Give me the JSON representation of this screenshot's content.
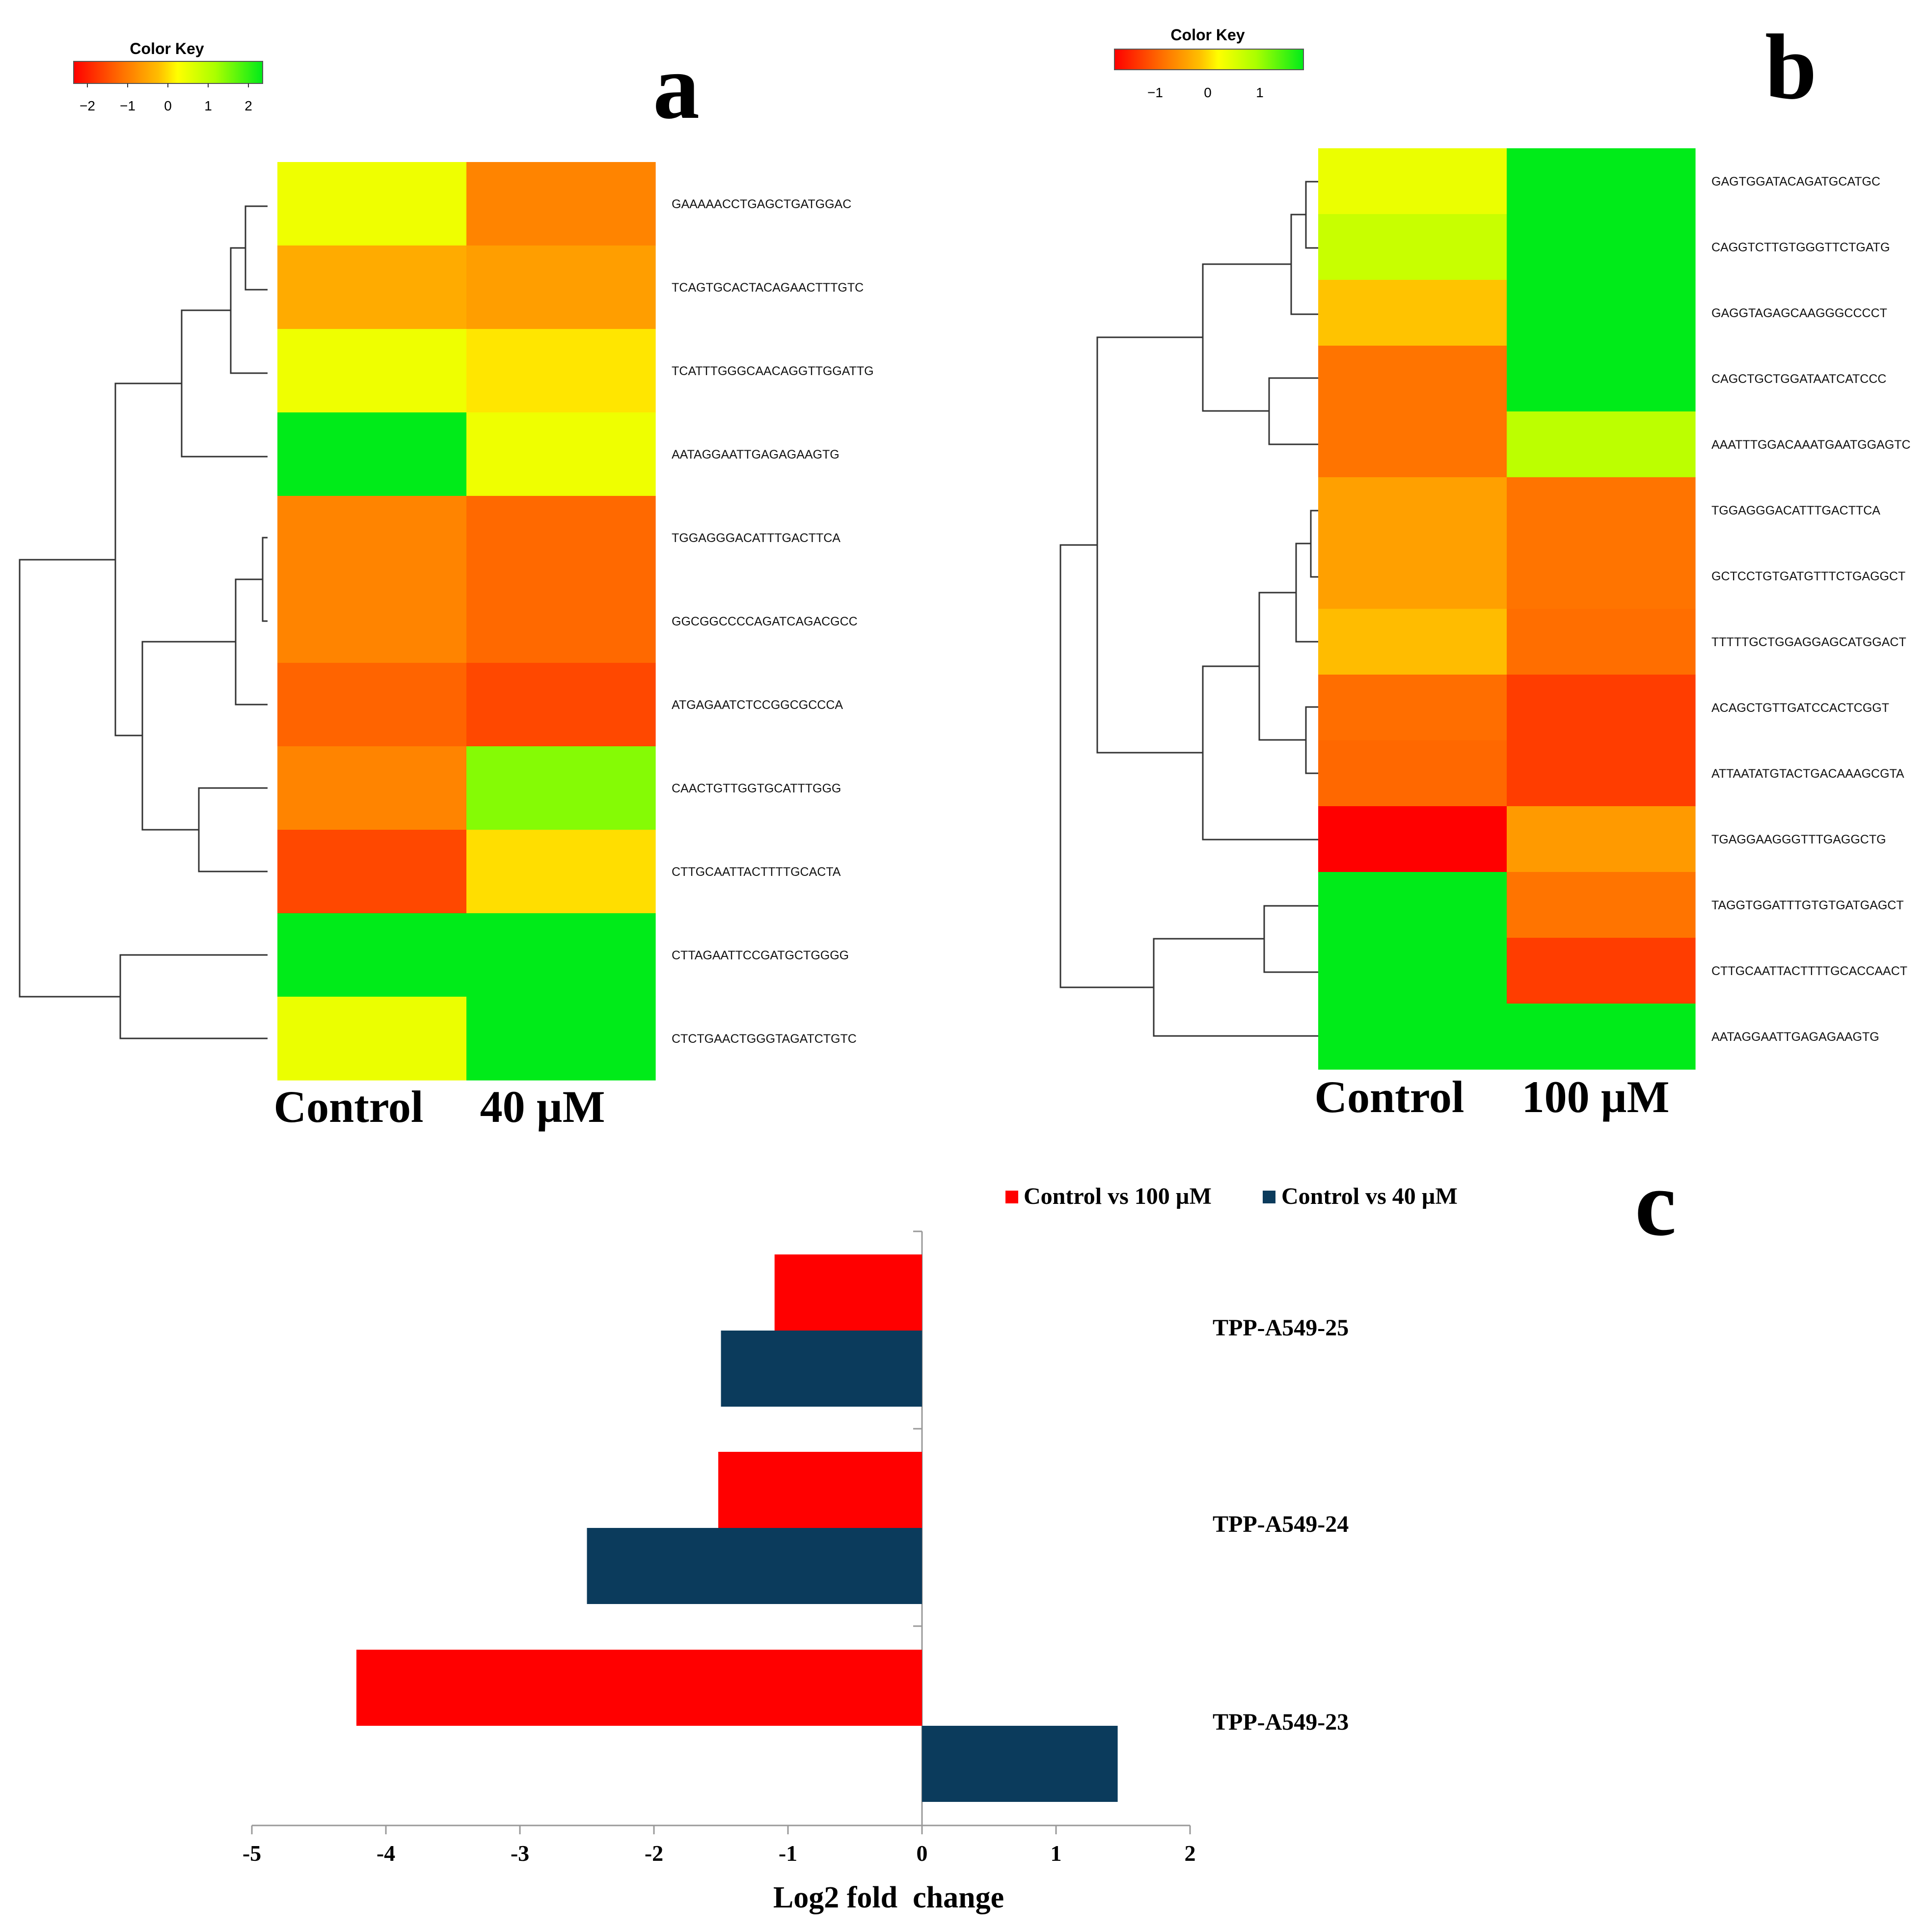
{
  "chart_data": [
    {
      "id": "a",
      "type": "heatmap",
      "panel_label": "a",
      "color_key": {
        "title": "Color Key",
        "ticks": [
          "−2",
          "−1",
          "0",
          "1",
          "2"
        ],
        "range": [
          -2.3,
          2.3
        ]
      },
      "columns": [
        "Control",
        "40 µM"
      ],
      "rows": [
        {
          "label": "GAAAAACCTGAGCTGATGGAC",
          "values": [
            0.4,
            -0.9
          ]
        },
        {
          "label": "TCAGTGCACTACAGAACTTTGTC",
          "values": [
            -0.45,
            -0.6
          ]
        },
        {
          "label": "TCATTTGGGCAACAGGTTGGATTG",
          "values": [
            0.4,
            0.05
          ]
        },
        {
          "label": "AATAGGAATTGAGAGAAGTG",
          "values": [
            2.3,
            0.4
          ]
        },
        {
          "label": "TGGAGGGACATTTGACTTCA",
          "values": [
            -0.9,
            -1.2
          ]
        },
        {
          "label": "GGCGGCCCCAGATCAGACGCC",
          "values": [
            -0.9,
            -1.2
          ]
        },
        {
          "label": "ATGAGAATCTCCGGCGCCCA",
          "values": [
            -1.25,
            -1.55
          ]
        },
        {
          "label": "CAACTGTTGGTGCATTTGGG",
          "values": [
            -0.9,
            1.4
          ]
        },
        {
          "label": "CTTGCAATTACTTTTGCACTA",
          "values": [
            -1.55,
            0.0
          ]
        },
        {
          "label": "CTTAGAATTCCGATGCTGGGG",
          "values": [
            2.3,
            2.3
          ]
        },
        {
          "label": "CTCTGAACTGGGTAGATCTGTC",
          "values": [
            0.45,
            2.3
          ]
        }
      ]
    },
    {
      "id": "b",
      "type": "heatmap",
      "panel_label": "b",
      "color_key": {
        "title": "Color Key",
        "ticks": [
          "−1",
          "0",
          "1"
        ],
        "range": [
          -1.8,
          1.8
        ]
      },
      "columns": [
        "Control",
        "100 µM"
      ],
      "rows": [
        {
          "label": "GAGTGGATACAGATGCATGC",
          "values": [
            0.35,
            1.8
          ]
        },
        {
          "label": "CAGGTCTTGTGGGTTCTGATG",
          "values": [
            0.65,
            1.8
          ]
        },
        {
          "label": "GAGGTAGAGCAAGGGCCCCT",
          "values": [
            -0.15,
            1.8
          ]
        },
        {
          "label": "CAGCTGCTGGATAATCATCCC",
          "values": [
            -0.85,
            1.8
          ]
        },
        {
          "label": "AAATTTGGACAAATGAATGGAGTC",
          "values": [
            -0.85,
            0.75
          ]
        },
        {
          "label": "TGGAGGGACATTTGACTTCA",
          "values": [
            -0.45,
            -0.85
          ]
        },
        {
          "label": "GCTCCTGTGATGTTTCTGAGGCT",
          "values": [
            -0.45,
            -0.85
          ]
        },
        {
          "label": "TTTTTGCTGGAGGAGCATGGACT",
          "values": [
            -0.2,
            -0.9
          ]
        },
        {
          "label": "ACAGCTGTTGATCCACTCGGT",
          "values": [
            -0.9,
            -1.3
          ]
        },
        {
          "label": "ATTAATATGTACTGACAAAGCGTA",
          "values": [
            -0.95,
            -1.3
          ]
        },
        {
          "label": "TGAGGAAGGGTTTGAGGCTG",
          "values": [
            -1.8,
            -0.5
          ]
        },
        {
          "label": "TAGGTGGATTTGTGTGATGAGCT",
          "values": [
            1.8,
            -0.85
          ]
        },
        {
          "label": "CTTGCAATTACTTTTGCACCAACT",
          "values": [
            1.8,
            -1.3
          ]
        },
        {
          "label": "AATAGGAATTGAGAGAAGTG",
          "values": [
            1.8,
            1.8
          ]
        }
      ]
    },
    {
      "id": "c",
      "type": "bar",
      "orientation": "horizontal",
      "panel_label": "c",
      "categories": [
        "TPP-A549-25",
        "TPP-A549-24",
        "TPP-A549-23"
      ],
      "series": [
        {
          "name": "Control vs 100 µM",
          "color": "#ff0000",
          "values": [
            -1.1,
            -1.52,
            -4.22
          ]
        },
        {
          "name": "Control vs 40 µM",
          "color": "#0b3b5c",
          "values": [
            -1.5,
            -2.5,
            1.46
          ]
        }
      ],
      "xlabel": "Log2 fold  change",
      "xlim": [
        -5,
        2
      ],
      "xticks": [
        "-5",
        "-4",
        "-3",
        "-2",
        "-1",
        "0",
        "1",
        "2"
      ],
      "legend_position": "top-right",
      "grid": false
    }
  ]
}
